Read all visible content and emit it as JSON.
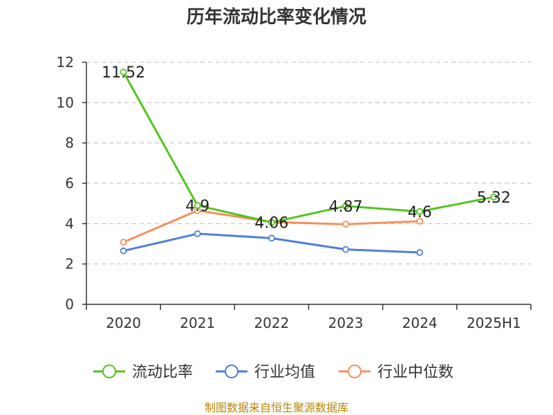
{
  "page": {
    "title": "历年流动比率变化情况",
    "source": "制图数据来自恒生聚源数据库"
  },
  "chart_data": {
    "type": "line",
    "title": "历年流动比率变化情况",
    "categories": [
      "2020",
      "2021",
      "2022",
      "2023",
      "2024",
      "2025H1"
    ],
    "ylim": [
      0,
      12
    ],
    "yticks": [
      "0",
      "2",
      "4",
      "6",
      "8",
      "10",
      "12"
    ],
    "grid": true,
    "legend_position": "bottom",
    "series": [
      {
        "name": "流动比率",
        "color": "#52c41a",
        "values": [
          11.52,
          4.9,
          4.06,
          4.87,
          4.6,
          5.32
        ],
        "labels": [
          "11.52",
          "4.9",
          "4.06",
          "4.87",
          "4.6",
          "5.32"
        ]
      },
      {
        "name": "行业均值",
        "color": "#4e7fdc",
        "values": [
          2.65,
          3.5,
          3.28,
          2.72,
          2.57,
          null
        ]
      },
      {
        "name": "行业中位数",
        "color": "#f4905a",
        "values": [
          3.08,
          4.65,
          4.08,
          3.97,
          4.12,
          null
        ]
      }
    ]
  }
}
